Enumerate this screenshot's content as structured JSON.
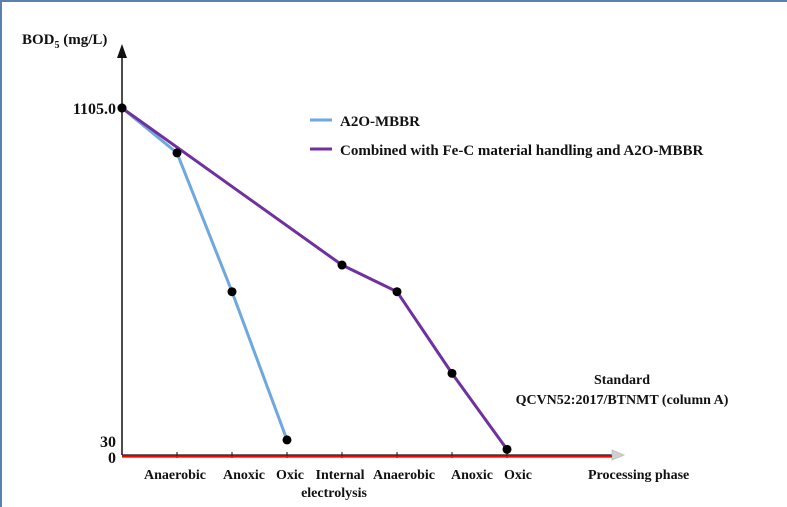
{
  "chart_data": {
    "type": "line",
    "ylabel_main": "BOD",
    "ylabel_sub": "5",
    "ylabel_unit": " (mg/L)",
    "xlabel": "Processing phase",
    "y_ticks": [
      "1105.0",
      "30",
      "0"
    ],
    "categories": [
      {
        "label": "Anaerobic"
      },
      {
        "label": "Anoxic"
      },
      {
        "label": "Oxic"
      },
      {
        "label": "Internal",
        "label2": "electrolysis"
      },
      {
        "label": "Anaerobic"
      },
      {
        "label": "Anoxic"
      },
      {
        "label": "Oxic"
      }
    ],
    "series": [
      {
        "name": "A2O-MBBR",
        "color": "#6fa8dc",
        "points": [
          {
            "x": 0,
            "y": 1105
          },
          {
            "x": 1,
            "y": 962
          },
          {
            "x": 2,
            "y": 520
          },
          {
            "x": 3,
            "y": 48
          }
        ]
      },
      {
        "name": "Combined with Fe-C material handling and A2O-MBBR",
        "color": "#7030a0",
        "points": [
          {
            "x": 0,
            "y": 1105
          },
          {
            "x": 4,
            "y": 605
          },
          {
            "x": 5,
            "y": 520
          },
          {
            "x": 6,
            "y": 260
          },
          {
            "x": 7,
            "y": 18
          }
        ]
      }
    ],
    "standard": {
      "value": 30,
      "color": "#ff0000",
      "label_line1": "Standard",
      "label_line2": "QCVN52:2017/BTNMT (column A)"
    },
    "legend_position": "top-right",
    "grid": false
  }
}
